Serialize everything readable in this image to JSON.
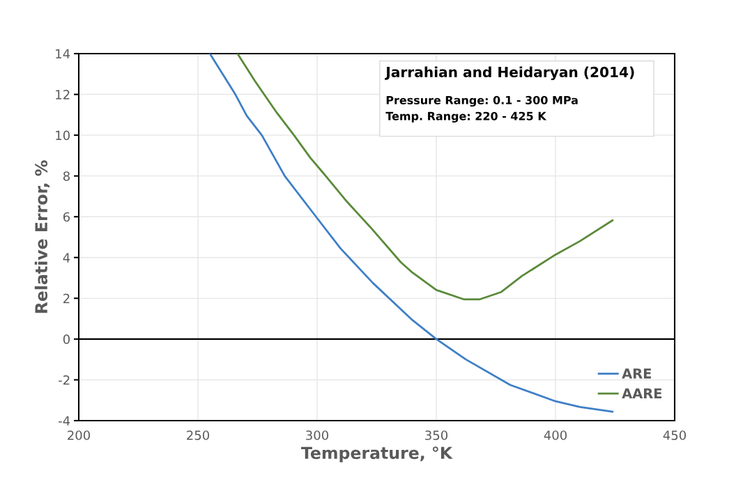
{
  "chart_data": {
    "type": "line",
    "xlabel": "Temperature, °K",
    "ylabel": "Relative Error, %",
    "annotations": [
      "Jarrahian and Heidaryan (2014)",
      "Pressure Range: 0.1 - 300 MPa",
      "Temp. Range: 220 - 425 K"
    ],
    "series": [
      {
        "name": "ARE",
        "color": "#3f7fc6",
        "x": [
          255.0,
          265.7,
          270.5,
          276.8,
          286.4,
          300,
          309.8,
          323.4,
          340,
          350,
          362.4,
          381,
          400,
          410.2,
          423.9
        ],
        "values": [
          14,
          12,
          10.95,
          10,
          8,
          5.93,
          4.45,
          2.75,
          0.93,
          0,
          -1.0,
          -2.25,
          -3.05,
          -3.33,
          -3.56
        ]
      },
      {
        "name": "AARE",
        "color": "#5a8a3a",
        "x": [
          266.6,
          273.9,
          282.6,
          290.3,
          297.1,
          302.9,
          312.5,
          322.4,
          335.1,
          340,
          350,
          361.5,
          368.3,
          377.1,
          385.9,
          400,
          410.2,
          423.9
        ],
        "values": [
          14,
          12.66,
          11.18,
          10,
          8.9,
          8.1,
          6.74,
          5.48,
          3.77,
          3.26,
          2.41,
          1.95,
          1.95,
          2.3,
          3.09,
          4.14,
          4.8,
          5.82
        ]
      }
    ],
    "xlim": [
      200,
      450
    ],
    "xticks": [
      200,
      250,
      300,
      350,
      400,
      450
    ],
    "ylim": [
      -4,
      14
    ],
    "yticks": [
      -4,
      -2,
      0,
      2,
      4,
      6,
      8,
      10,
      12,
      14
    ],
    "ref_lines": [
      {
        "axis": "y",
        "value": 0,
        "color": "#000000"
      }
    ],
    "grid": true,
    "legend": "bottom right",
    "marker": "none",
    "line_style": "solid"
  }
}
